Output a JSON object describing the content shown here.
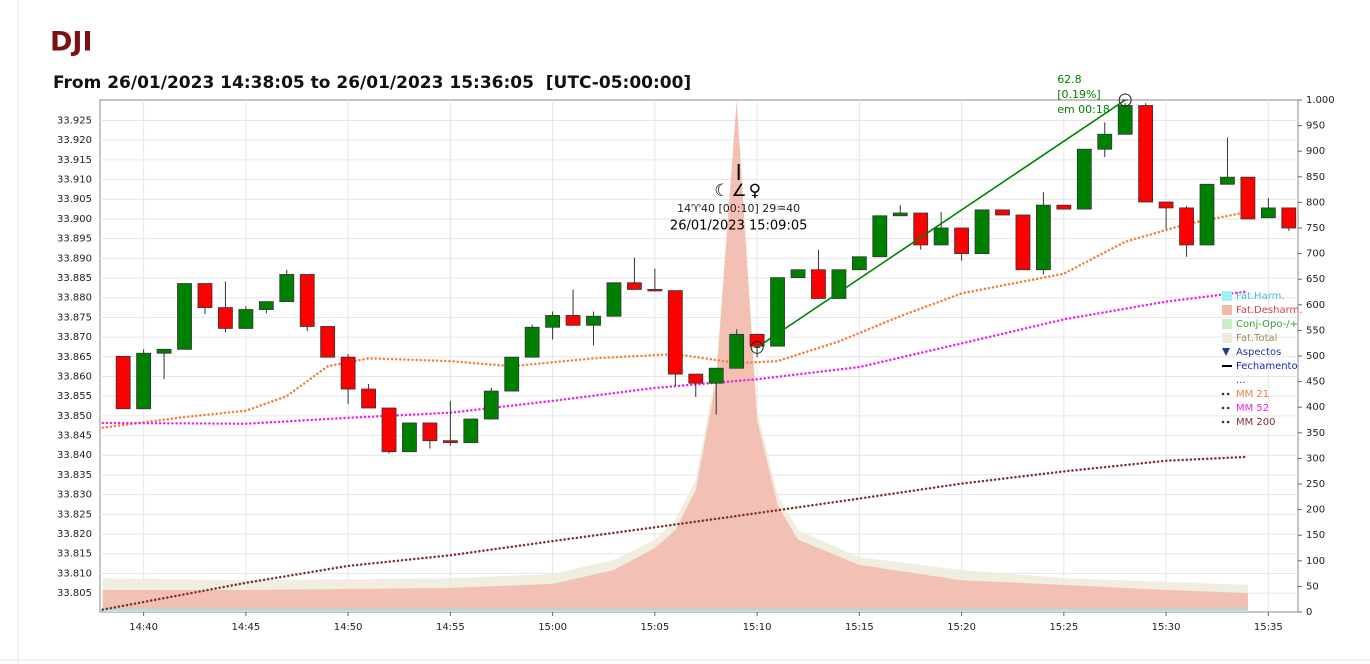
{
  "chart_data": {
    "type": "candlestick",
    "title": "DJI",
    "subtitle": "From 26/01/2023 14:38:05 to 26/01/2023 15:36:05  [UTC-05:00:00]",
    "up_color": "#008000",
    "down_color": "#ff0000",
    "grid": true,
    "xlim": [
      "14:37:52",
      "15:36:27"
    ],
    "xticks": [
      "14:40",
      "14:45",
      "14:50",
      "14:55",
      "15:00",
      "15:05",
      "15:10",
      "15:15",
      "15:20",
      "15:25",
      "15:30",
      "15:35"
    ],
    "ylim": [
      33.8002,
      33.9302
    ],
    "yticks": [
      33.805,
      {
        "value": 33.81,
        "label": "33.810"
      },
      33.815,
      {
        "value": 33.82,
        "label": "33.820"
      },
      33.825,
      {
        "value": 33.83,
        "label": "33.830"
      },
      33.835,
      {
        "value": 33.84,
        "label": "33.840"
      },
      33.845,
      {
        "value": 33.85,
        "label": "33.850"
      },
      33.855,
      {
        "value": 33.86,
        "label": "33.860"
      },
      33.865,
      {
        "value": 33.87,
        "label": "33.870"
      },
      33.875,
      {
        "value": 33.88,
        "label": "33.880"
      },
      33.885,
      {
        "value": 33.89,
        "label": "33.890"
      },
      33.895,
      {
        "value": 33.9,
        "label": "33.900"
      },
      33.905,
      {
        "value": 33.91,
        "label": "33.910"
      },
      33.915,
      {
        "value": 33.92,
        "label": "33.920"
      },
      33.925
    ],
    "y2lim": [
      0,
      1000
    ],
    "y2ticks": [
      0,
      50,
      100,
      150,
      200,
      250,
      300,
      350,
      400,
      450,
      500,
      550,
      600,
      650,
      700,
      750,
      800,
      850,
      900,
      950,
      {
        "value": 1000,
        "label": "1.000"
      }
    ],
    "candles": {
      "x": [
        "14:39",
        "14:40",
        "14:41",
        "14:42",
        "14:43",
        "14:44",
        "14:45",
        "14:46",
        "14:47",
        "14:48",
        "14:49",
        "14:50",
        "14:51",
        "14:52",
        "14:53",
        "14:54",
        "14:55",
        "14:56",
        "14:57",
        "14:58",
        "14:59",
        "15:00",
        "15:01",
        "15:02",
        "15:03",
        "15:04",
        "15:05",
        "15:06",
        "15:07",
        "15:08",
        "15:09",
        "15:10",
        "15:11",
        "15:12",
        "15:13",
        "15:14",
        "15:15",
        "15:16",
        "15:17",
        "15:18",
        "15:19",
        "15:20",
        "15:21",
        "15:22",
        "15:23",
        "15:24",
        "15:25",
        "15:26",
        "15:27",
        "15:28",
        "15:29",
        "15:30",
        "15:31",
        "15:32",
        "15:33",
        "15:34",
        "15:35",
        "15:36"
      ],
      "open": [
        33.8651,
        33.8518,
        33.8659,
        33.8669,
        33.8836,
        33.8775,
        33.8722,
        33.877,
        33.879,
        33.8859,
        33.8727,
        33.8649,
        33.8568,
        33.852,
        33.8409,
        33.8482,
        33.8437,
        33.8432,
        33.8492,
        33.8563,
        33.8649,
        33.8725,
        33.8755,
        33.873,
        33.8753,
        33.8838,
        33.8821,
        33.8818,
        33.8606,
        33.8583,
        33.8621,
        33.8707,
        33.8677,
        33.8851,
        33.8871,
        33.8798,
        33.8871,
        33.8904,
        33.9008,
        33.9015,
        33.8934,
        33.8977,
        33.8912,
        33.9023,
        33.901,
        33.8871,
        33.9035,
        33.9025,
        33.9177,
        33.9215,
        33.9288,
        33.9043,
        33.9028,
        33.8934,
        33.9088,
        33.9106,
        33.9003,
        33.9028
      ],
      "high": [
        33.8651,
        33.8669,
        33.8669,
        33.8836,
        33.8836,
        33.8841,
        33.8778,
        33.879,
        33.8871,
        33.8859,
        33.8727,
        33.8657,
        33.8581,
        33.852,
        33.8482,
        33.8482,
        33.8538,
        33.8492,
        33.8571,
        33.8649,
        33.8732,
        33.8765,
        33.8821,
        33.8765,
        33.8838,
        33.8902,
        33.8874,
        33.8818,
        33.8606,
        33.8621,
        33.872,
        33.8707,
        33.8851,
        33.8871,
        33.8922,
        33.8871,
        33.8904,
        33.9008,
        33.9035,
        33.9015,
        33.9018,
        33.8977,
        33.9023,
        33.9023,
        33.901,
        33.9068,
        33.9035,
        33.9177,
        33.9245,
        33.9294,
        33.9294,
        33.9043,
        33.9033,
        33.9088,
        33.9207,
        33.9106,
        33.9053,
        33.9028
      ],
      "low": [
        33.8518,
        33.8518,
        33.8593,
        33.8669,
        33.8758,
        33.8712,
        33.8722,
        33.876,
        33.879,
        33.8715,
        33.8649,
        33.853,
        33.852,
        33.8404,
        33.8409,
        33.8417,
        33.8424,
        33.8432,
        33.8492,
        33.8563,
        33.8649,
        33.8694,
        33.873,
        33.8679,
        33.8753,
        33.8821,
        33.8816,
        33.8576,
        33.8548,
        33.8503,
        33.8621,
        33.8649,
        33.8677,
        33.8851,
        33.8798,
        33.8798,
        33.8871,
        33.8904,
        33.9008,
        33.8922,
        33.8934,
        33.8894,
        33.8912,
        33.901,
        33.8871,
        33.8859,
        33.9025,
        33.9025,
        33.9157,
        33.9215,
        33.9043,
        33.8975,
        33.8904,
        33.8934,
        33.9088,
        33.9,
        33.9003,
        33.897
      ],
      "close": [
        33.8518,
        33.8659,
        33.8669,
        33.8836,
        33.8775,
        33.8722,
        33.877,
        33.879,
        33.8859,
        33.8727,
        33.8649,
        33.8568,
        33.852,
        33.8409,
        33.8482,
        33.8437,
        33.8432,
        33.8492,
        33.8563,
        33.8649,
        33.8725,
        33.8755,
        33.873,
        33.8753,
        33.8838,
        33.8821,
        33.8818,
        33.8606,
        33.8583,
        33.8621,
        33.8707,
        33.8677,
        33.8851,
        33.8871,
        33.8798,
        33.8871,
        33.8904,
        33.9008,
        33.9015,
        33.8934,
        33.8977,
        33.8912,
        33.9023,
        33.901,
        33.8871,
        33.9035,
        33.9025,
        33.9177,
        33.9215,
        33.9288,
        33.9043,
        33.9028,
        33.8934,
        33.9088,
        33.9106,
        33.9,
        33.9028,
        33.8977
      ]
    },
    "series": [
      {
        "name": "Fat.Harm.",
        "color": "#9ff0f0",
        "text_color": "#40c0d0",
        "kind": "area",
        "axis": "y2",
        "x": [
          "14:38",
          "15:34"
        ],
        "values": [
          5,
          5
        ]
      },
      {
        "name": "Fat.Desharm.",
        "color": "#f2b8aa",
        "text_color": "#e04040",
        "kind": "area",
        "axis": "y2",
        "x": [
          "14:38",
          "14:45",
          "14:55",
          "15:00",
          "15:03",
          "15:05",
          "15:06",
          "15:07",
          "15:08",
          "15:09",
          "15:10",
          "15:11",
          "15:12",
          "15:15",
          "15:20",
          "15:25",
          "15:30",
          "15:34"
        ],
        "values": [
          43,
          43,
          47,
          55,
          82,
          125,
          160,
          238,
          453,
          1000,
          375,
          209,
          141,
          92,
          62,
          53,
          43,
          37
        ]
      },
      {
        "name": "Conj-Opo-/+",
        "color": "#c6efc6",
        "text_color": "#30a030",
        "kind": "area",
        "axis": "y2",
        "x": [
          "14:38",
          "15:34"
        ],
        "values": [
          18,
          18
        ]
      },
      {
        "name": "Fat.Total",
        "color": "#ecebdc",
        "text_color": "#909060",
        "kind": "area",
        "axis": "y2",
        "x": [
          "14:38",
          "14:45",
          "14:55",
          "15:00",
          "15:03",
          "15:05",
          "15:06",
          "15:07",
          "15:08",
          "15:09",
          "15:10",
          "15:11",
          "15:12",
          "15:15",
          "15:20",
          "15:25",
          "15:30",
          "15:34"
        ],
        "values": [
          66,
          62,
          66,
          74,
          102,
          141,
          180,
          258,
          473,
          1000,
          395,
          229,
          160,
          107,
          82,
          66,
          59,
          53
        ]
      },
      {
        "name": "MM 21",
        "color": "#f08040",
        "text_color": "#f08040",
        "kind": "line",
        "x": [
          "14:38",
          "14:42",
          "14:45",
          "14:47",
          "14:49",
          "14:51",
          "14:55",
          "14:58",
          "15:02",
          "15:06",
          "15:09",
          "15:11",
          "15:14",
          "15:17",
          "15:20",
          "15:25",
          "15:28",
          "15:31",
          "15:34"
        ],
        "values": [
          33.847,
          33.8497,
          33.8513,
          33.855,
          33.8626,
          33.8646,
          33.8639,
          33.8626,
          33.8646,
          33.8657,
          33.8634,
          33.8639,
          33.8689,
          33.8753,
          33.8811,
          33.8861,
          33.8942,
          33.8987,
          33.9018
        ]
      },
      {
        "name": "MM 52",
        "color": "#ee22ee",
        "text_color": "#ee22ee",
        "kind": "line",
        "x": [
          "14:38",
          "14:45",
          "14:50",
          "14:55",
          "15:00",
          "15:05",
          "15:10",
          "15:15",
          "15:20",
          "15:25",
          "15:30",
          "15:34"
        ],
        "values": [
          33.8482,
          33.848,
          33.8495,
          33.8508,
          33.8538,
          33.8571,
          33.8593,
          33.8624,
          33.8684,
          33.8745,
          33.879,
          33.8816
        ]
      },
      {
        "name": "MM 200",
        "color": "#803030",
        "text_color": "#803030",
        "kind": "line",
        "x": [
          "14:38",
          "14:45",
          "14:50",
          "14:55",
          "15:00",
          "15:05",
          "15:10",
          "15:15",
          "15:20",
          "15:25",
          "15:30",
          "15:34"
        ],
        "values": [
          33.8008,
          33.8076,
          33.8119,
          33.8146,
          33.8182,
          33.8217,
          33.8253,
          33.829,
          33.8328,
          33.8359,
          33.8386,
          33.8396
        ]
      }
    ],
    "legend_extra": [
      {
        "name": "Aspectos",
        "color": "#1f3a93",
        "symbol": "triangle"
      },
      {
        "name": "Fechamento",
        "color": "#000000",
        "text_color": "#2020c0",
        "symbol": "line"
      },
      {
        "name": "...",
        "color": "#2020c0",
        "symbol": "none"
      }
    ],
    "trendline": {
      "x": [
        "15:10",
        "15:28"
      ],
      "values": [
        33.8674,
        33.9302
      ],
      "color": "#008000",
      "labels": [
        "62.8",
        "[0.19%]",
        "em 00:18"
      ]
    },
    "aspect": {
      "x": "15:09",
      "glyphs": "☾∠♀",
      "positions": "14♈40 [00:10] 29♒40",
      "datetime": "26/01/2023 15:09:05"
    }
  }
}
